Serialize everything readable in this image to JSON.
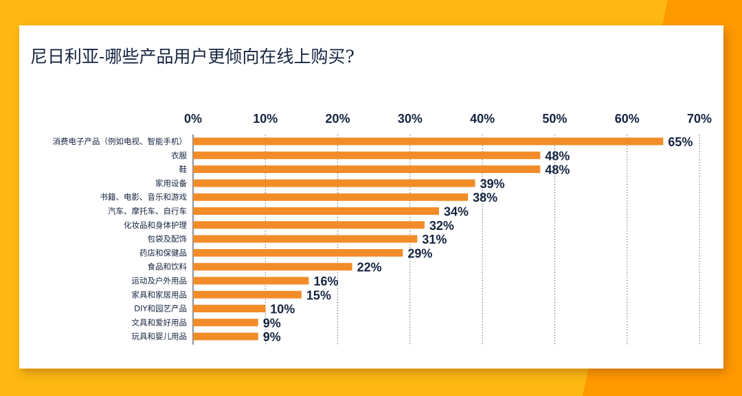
{
  "title": "尼日利亚-哪些产品用户更倾向在线上购买?",
  "colors": {
    "bar": "#F28C28",
    "text": "#14233f",
    "background": "#FDB813",
    "accent": "#FF9900"
  },
  "chart_data": {
    "type": "bar",
    "orientation": "horizontal",
    "title": "尼日利亚-哪些产品用户更倾向在线上购买?",
    "categories": [
      "消费电子产品（例如电视、智能手机）",
      "衣服",
      "鞋",
      "家用设备",
      "书籍、电影、音乐和游戏",
      "汽车、摩托车、自行车",
      "化妆品和身体护理",
      "包袋及配饰",
      "药店和保健品",
      "食品和饮料",
      "运动及户外用品",
      "家具和家居用品",
      "DIY和园艺产品",
      "文具和爱好用品",
      "玩具和婴儿用品"
    ],
    "values": [
      65,
      48,
      48,
      39,
      38,
      34,
      32,
      31,
      29,
      22,
      16,
      15,
      10,
      9,
      9
    ],
    "data_labels": [
      "65%",
      "48%",
      "48%",
      "39%",
      "38%",
      "34%",
      "32%",
      "31%",
      "29%",
      "22%",
      "16%",
      "15%",
      "10%",
      "9%",
      "9%"
    ],
    "xlim": [
      0,
      70
    ],
    "x_ticks": [
      "0%",
      "10%",
      "20%",
      "30%",
      "40%",
      "50%",
      "60%",
      "70%"
    ],
    "x_axis_position": "top",
    "grid": "vertical dotted",
    "legend": "none"
  }
}
